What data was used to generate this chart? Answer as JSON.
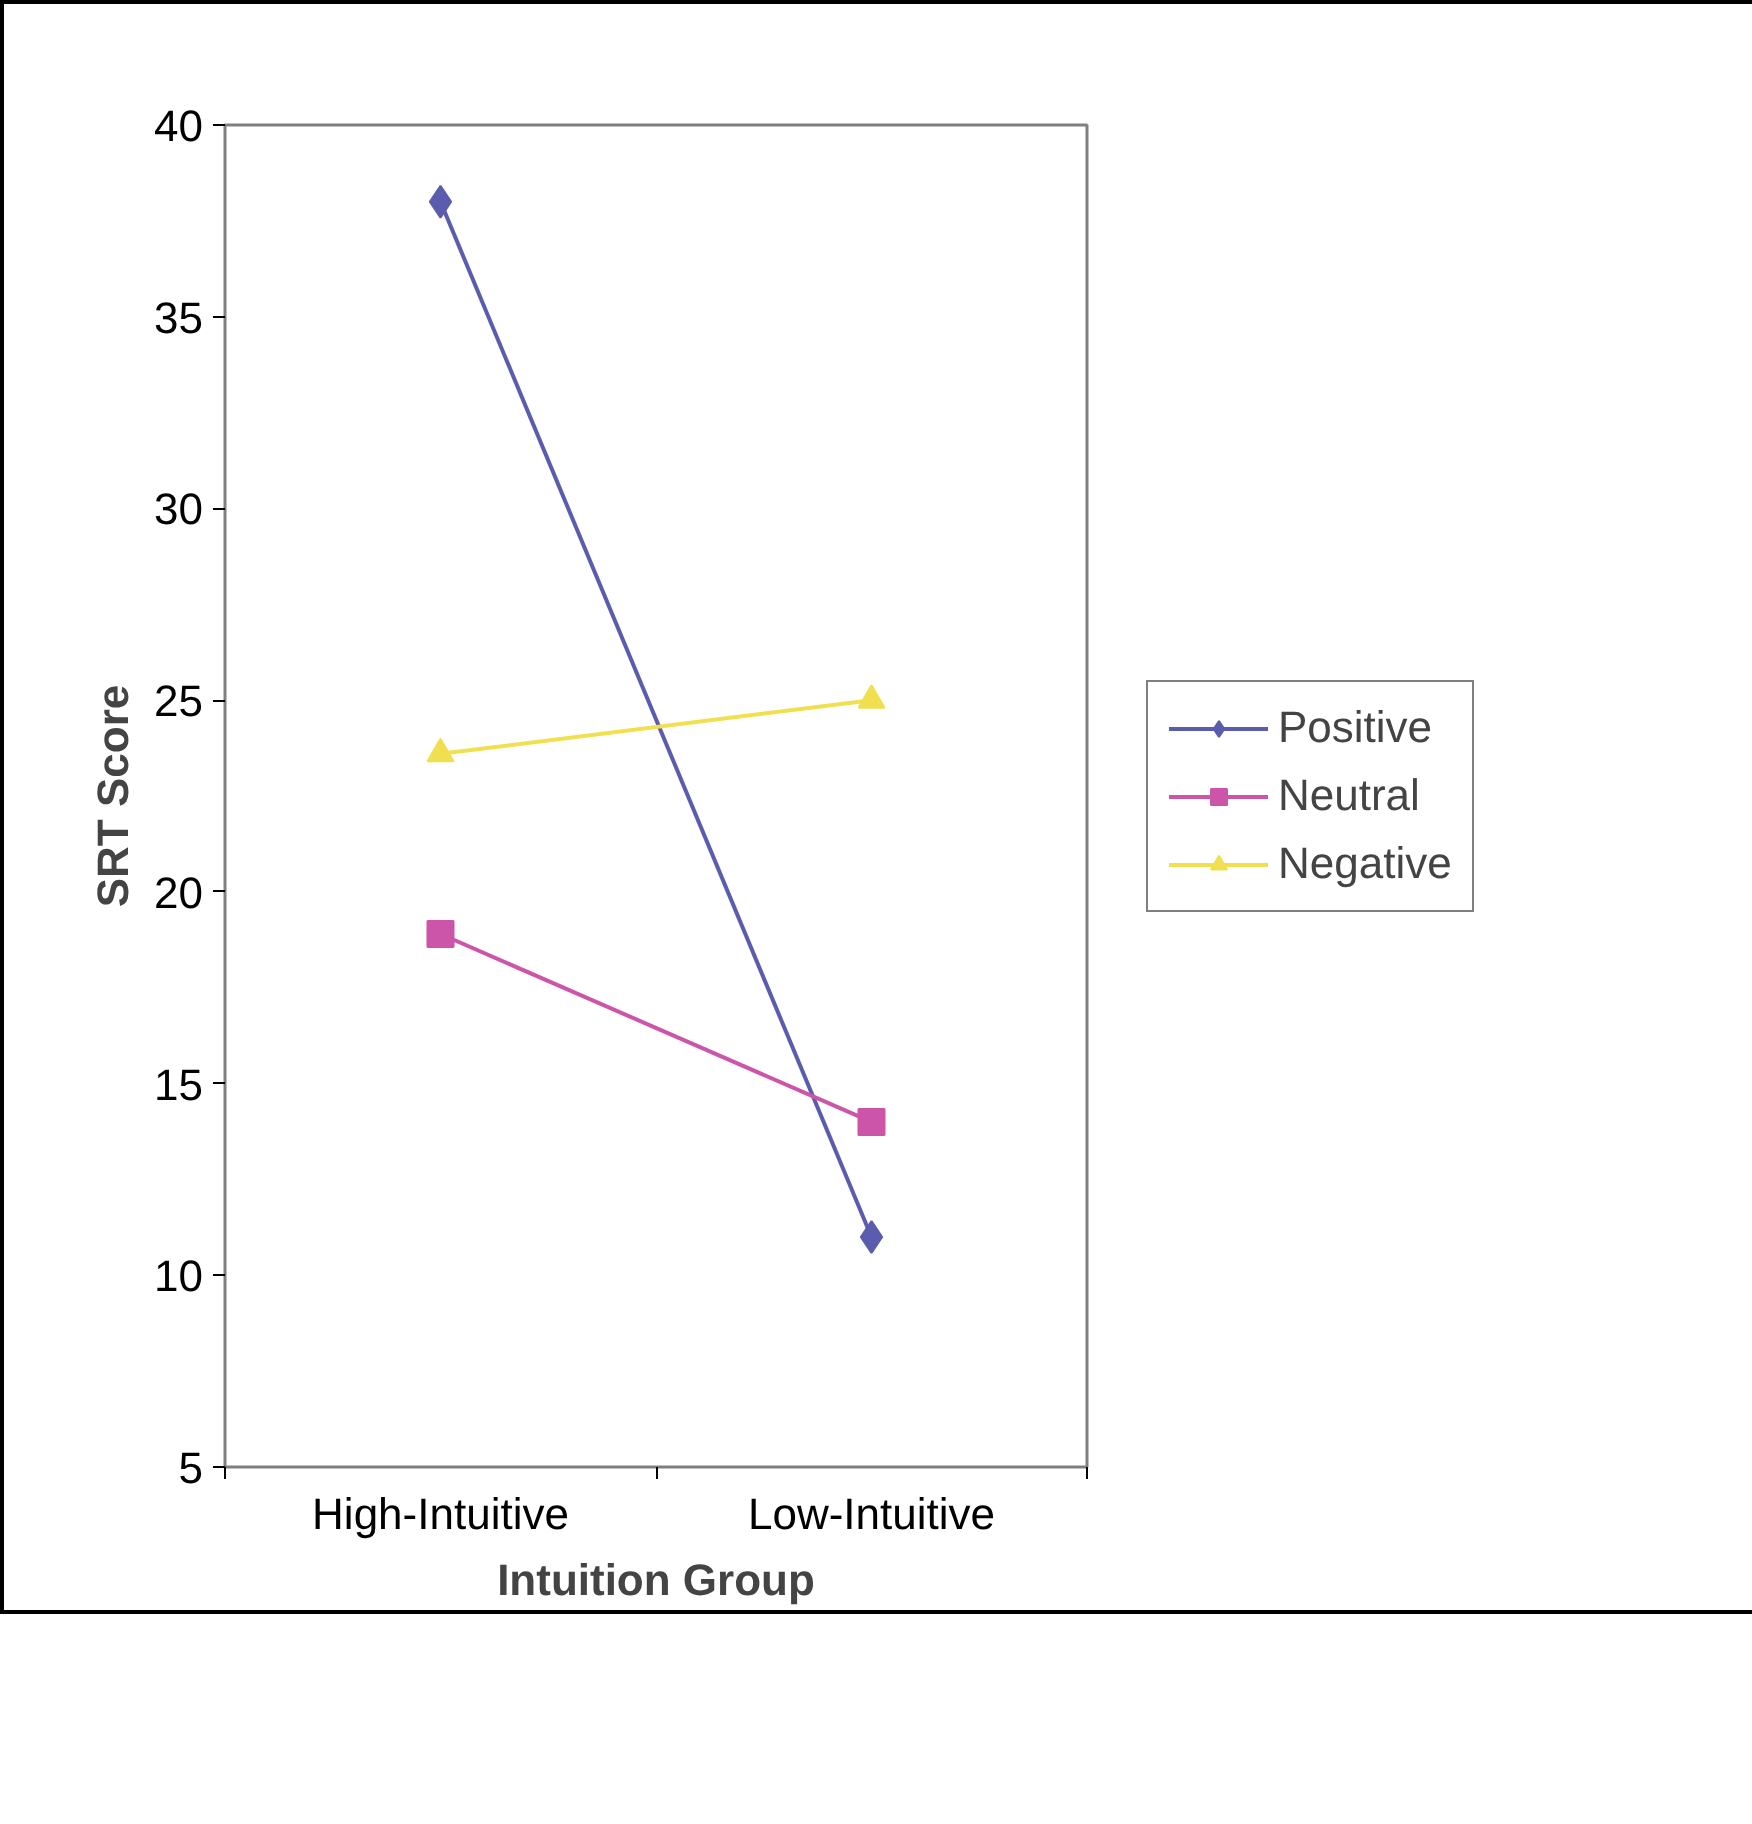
{
  "chart_data": {
    "type": "line",
    "xlabel": "Intuition Group",
    "ylabel": "SRT Score",
    "categories": [
      "High-Intuitive",
      "Low-Intuitive"
    ],
    "ylim": [
      5,
      40
    ],
    "yticks": [
      5,
      10,
      15,
      20,
      25,
      30,
      35,
      40
    ],
    "grid": false,
    "legend": "right",
    "series": [
      {
        "name": "Positive",
        "color": "#5c5cae",
        "marker": "diamond",
        "values": [
          38,
          11
        ]
      },
      {
        "name": "Neutral",
        "color": "#cc55aa",
        "marker": "square",
        "values": [
          18.9,
          14
        ]
      },
      {
        "name": "Negative",
        "color": "#f0e050",
        "marker": "triangle",
        "values": [
          23.6,
          25
        ]
      }
    ]
  }
}
